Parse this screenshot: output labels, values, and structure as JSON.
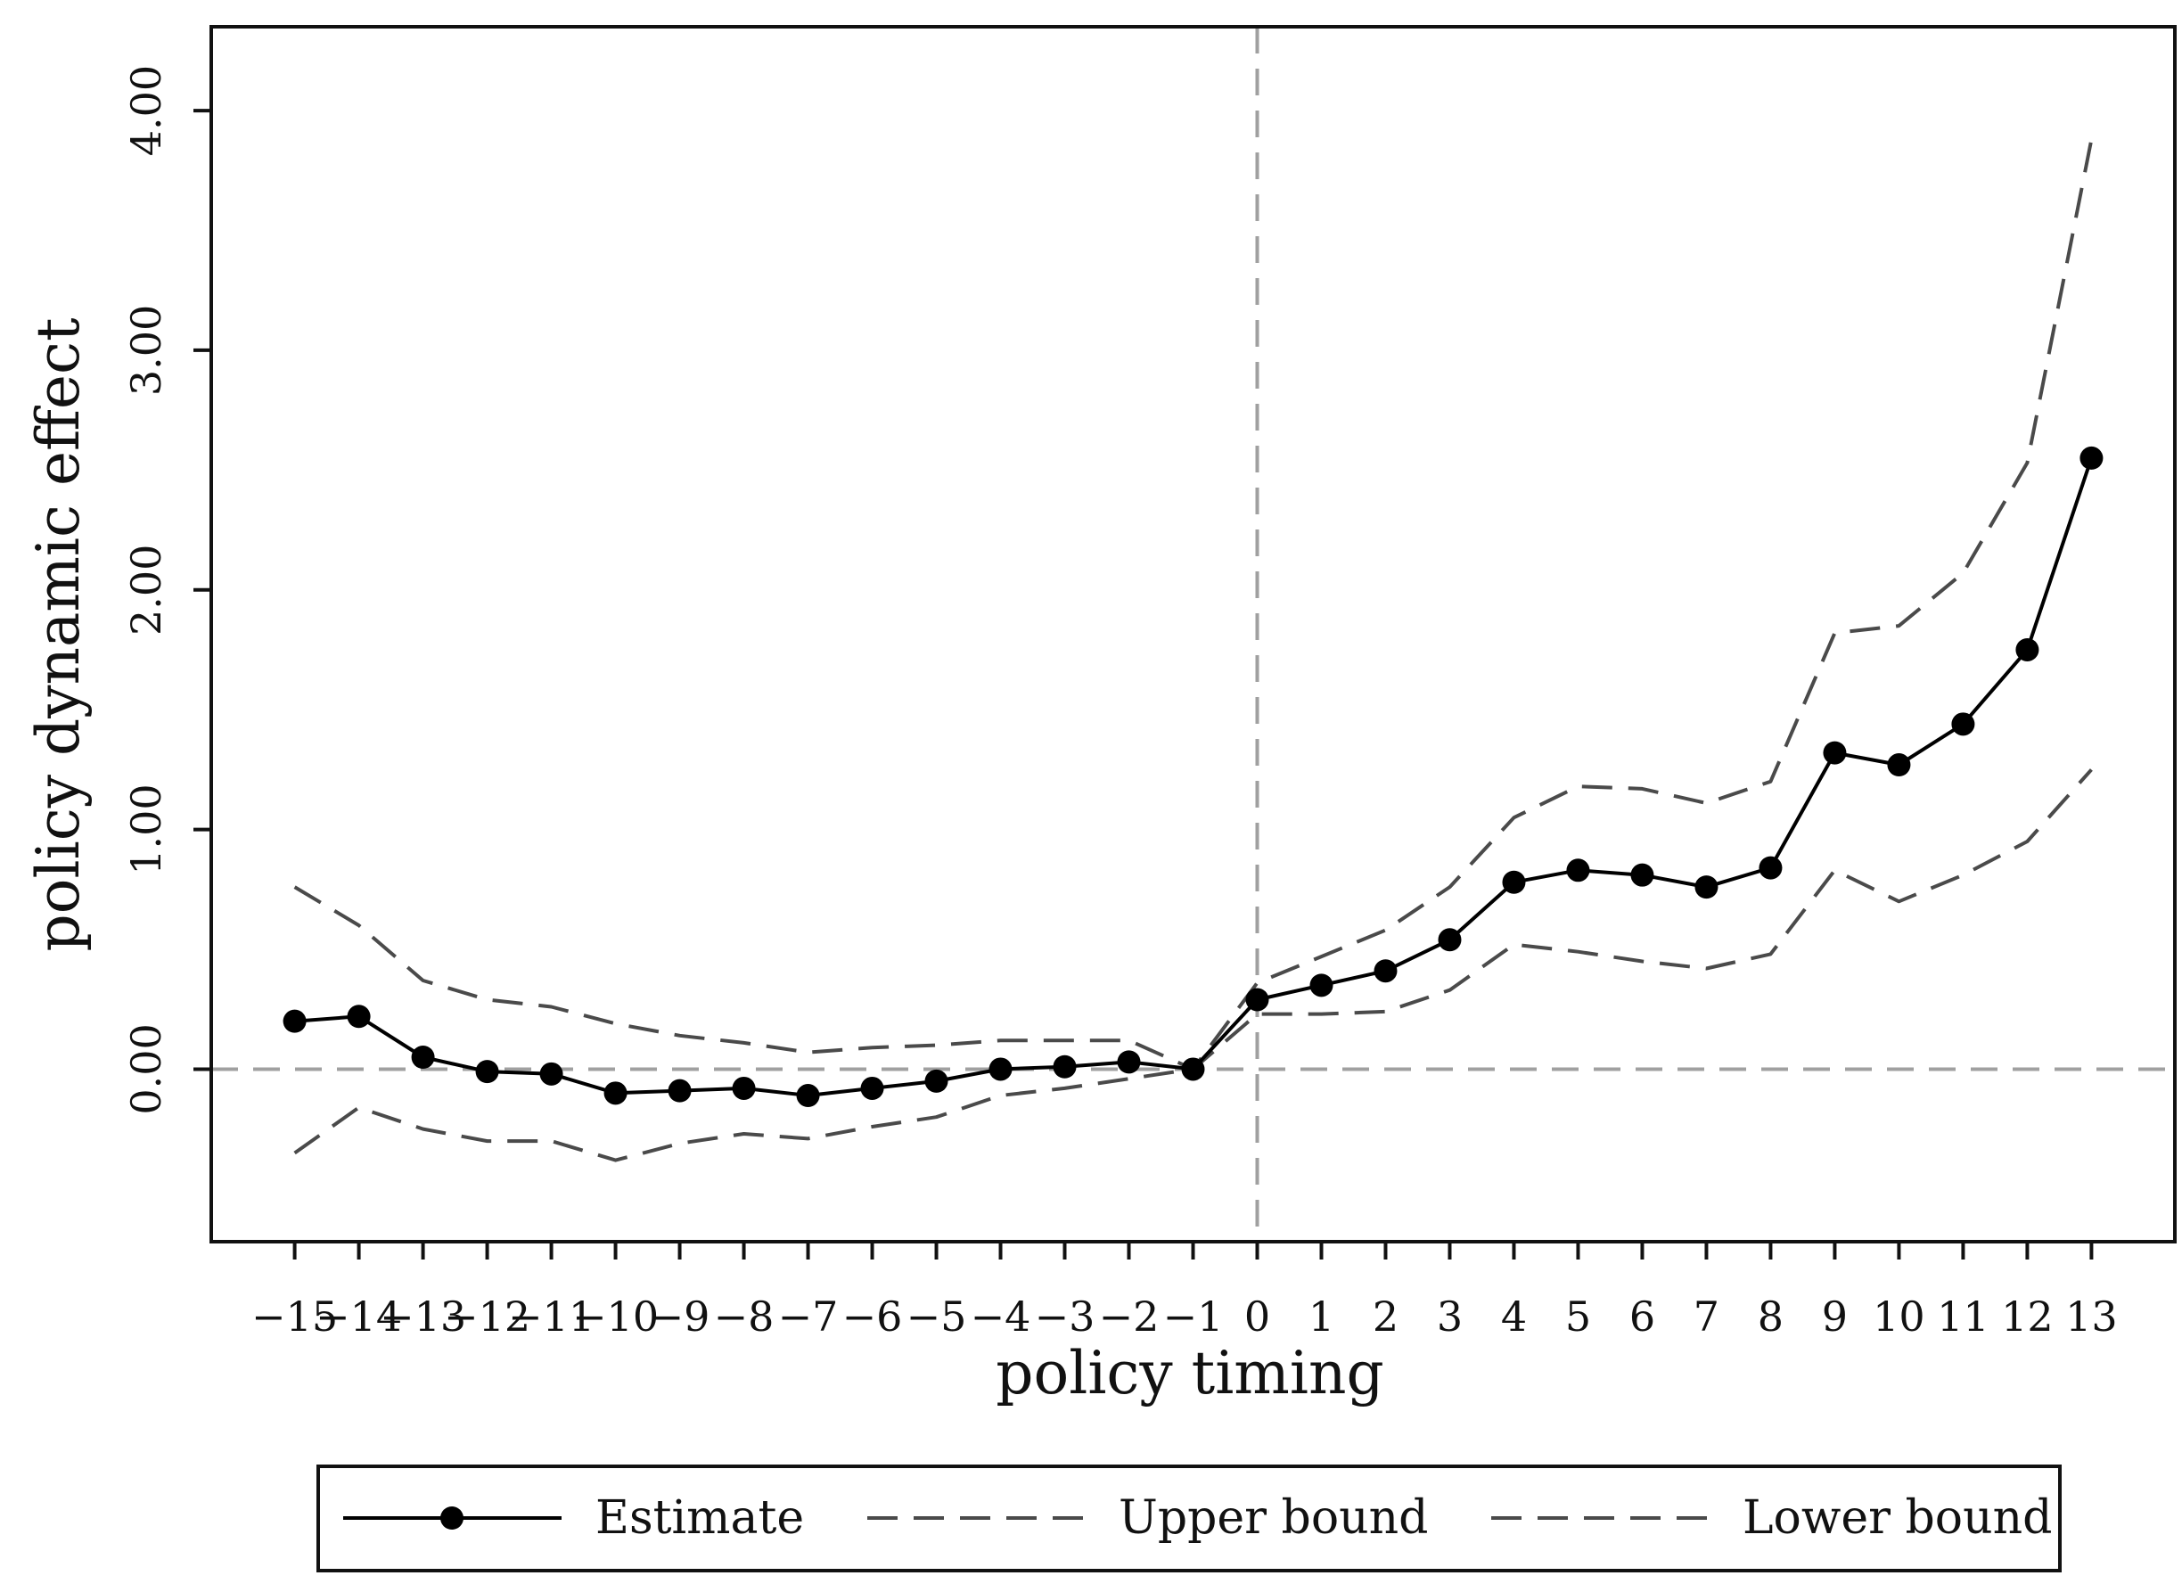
{
  "chart_data": {
    "type": "line",
    "xlabel": "policy timing",
    "ylabel": "policy dynamic effect",
    "ylim": [
      -0.72,
      4.35
    ],
    "xlim": [
      -16.3,
      14.3
    ],
    "yticks": [
      0,
      1,
      2,
      3,
      4
    ],
    "ytick_labels": [
      "0.00",
      "1.00",
      "2.00",
      "3.00",
      "4.00"
    ],
    "xticks": [
      -15,
      -14,
      -13,
      -12,
      -11,
      -10,
      -9,
      -8,
      -7,
      -6,
      -5,
      -4,
      -3,
      -2,
      -1,
      0,
      1,
      2,
      3,
      4,
      5,
      6,
      7,
      8,
      9,
      10,
      11,
      12,
      13
    ],
    "xtick_labels": [
      "−15",
      "−14",
      "−13",
      "−12",
      "−11",
      "−10",
      "−9",
      "−8",
      "−7",
      "−6",
      "−5",
      "−4",
      "−3",
      "−2",
      "−1",
      "0",
      "1",
      "2",
      "3",
      "4",
      "5",
      "6",
      "7",
      "8",
      "9",
      "10",
      "11",
      "12",
      "13"
    ],
    "x": [
      -15,
      -14,
      -13,
      -12,
      -11,
      -10,
      -9,
      -8,
      -7,
      -6,
      -5,
      -4,
      -3,
      -2,
      -1,
      0,
      1,
      2,
      3,
      4,
      5,
      6,
      7,
      8,
      9,
      10,
      11,
      12,
      13
    ],
    "series": [
      {
        "name": "Estimate",
        "style": "solid-markers",
        "color": "#000000",
        "values": [
          0.2,
          0.22,
          0.05,
          -0.01,
          -0.02,
          -0.1,
          -0.09,
          -0.08,
          -0.11,
          -0.08,
          -0.05,
          0.0,
          0.01,
          0.03,
          0.0,
          0.29,
          0.35,
          0.41,
          0.54,
          0.78,
          0.83,
          0.81,
          0.76,
          0.84,
          1.32,
          1.27,
          1.44,
          1.75,
          2.55
        ]
      },
      {
        "name": "Upper bound",
        "style": "dashed",
        "color": "#4a4a4a",
        "values": [
          0.76,
          0.6,
          0.37,
          0.29,
          0.26,
          0.19,
          0.14,
          0.11,
          0.07,
          0.09,
          0.1,
          0.12,
          0.12,
          0.12,
          0.0,
          0.36,
          0.47,
          0.58,
          0.76,
          1.05,
          1.18,
          1.17,
          1.11,
          1.2,
          1.82,
          1.85,
          2.07,
          2.53,
          3.88
        ]
      },
      {
        "name": "Lower bound",
        "style": "dashed",
        "color": "#4a4a4a",
        "values": [
          -0.35,
          -0.16,
          -0.25,
          -0.3,
          -0.3,
          -0.38,
          -0.31,
          -0.27,
          -0.29,
          -0.24,
          -0.2,
          -0.11,
          -0.08,
          -0.04,
          0.0,
          0.23,
          0.23,
          0.24,
          0.33,
          0.52,
          0.49,
          0.45,
          0.42,
          0.48,
          0.83,
          0.7,
          0.81,
          0.95,
          1.25
        ]
      }
    ],
    "reference_lines": {
      "horizontal_y": 0,
      "vertical_x": 0,
      "color": "#a0a0a0"
    },
    "legend": {
      "placement": "bottom",
      "entries": [
        "Estimate",
        "Upper bound",
        "Lower bound"
      ]
    },
    "grid": false
  }
}
